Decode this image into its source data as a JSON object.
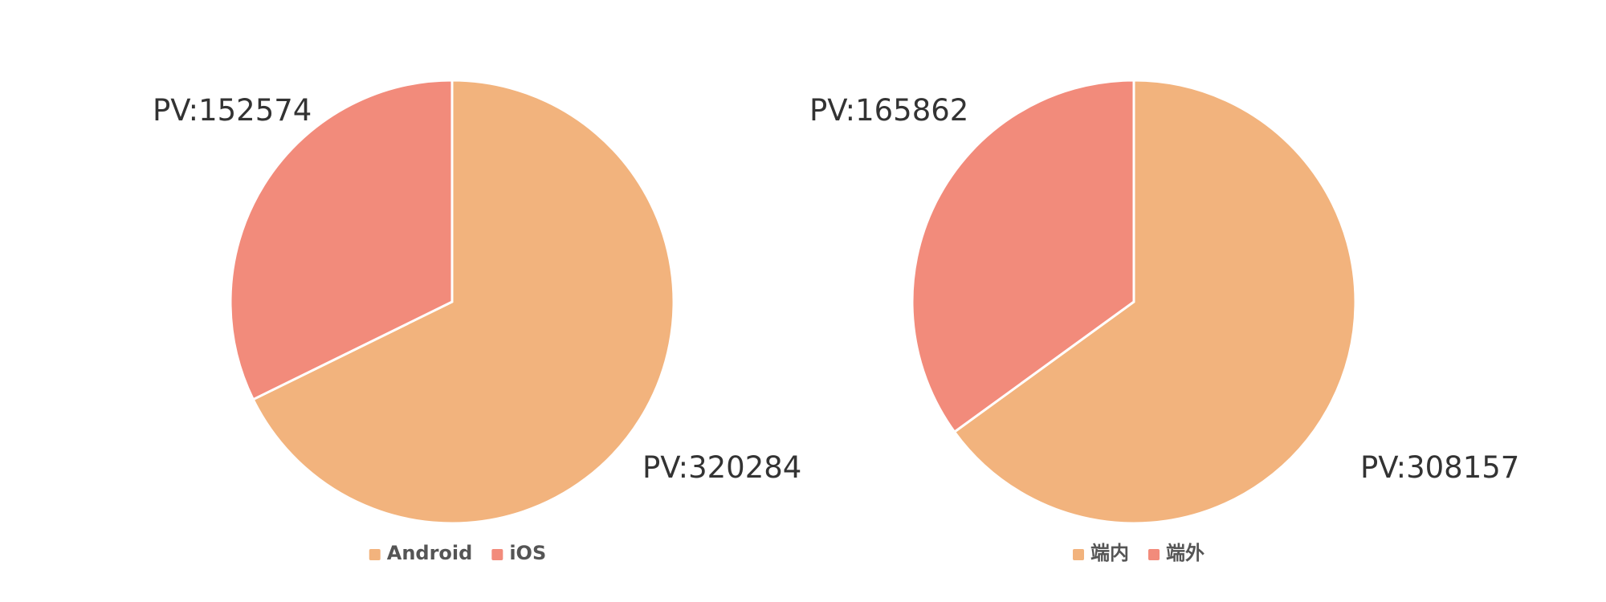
{
  "chart_data": [
    {
      "type": "pie",
      "categories": [
        "Android",
        "iOS"
      ],
      "values": [
        320284,
        152574
      ],
      "data_labels": [
        "PV:320284",
        "PV:152574"
      ],
      "colors": [
        "#f2b37d",
        "#f28b7b"
      ],
      "legend": [
        "Android",
        "iOS"
      ],
      "legend_position": "bottom"
    },
    {
      "type": "pie",
      "categories": [
        "端内",
        "端外"
      ],
      "values": [
        308157,
        165862
      ],
      "data_labels": [
        "PV:308157",
        "PV:165862"
      ],
      "colors": [
        "#f2b37d",
        "#f28b7b"
      ],
      "legend": [
        "端内",
        "端外"
      ],
      "legend_position": "bottom"
    }
  ]
}
